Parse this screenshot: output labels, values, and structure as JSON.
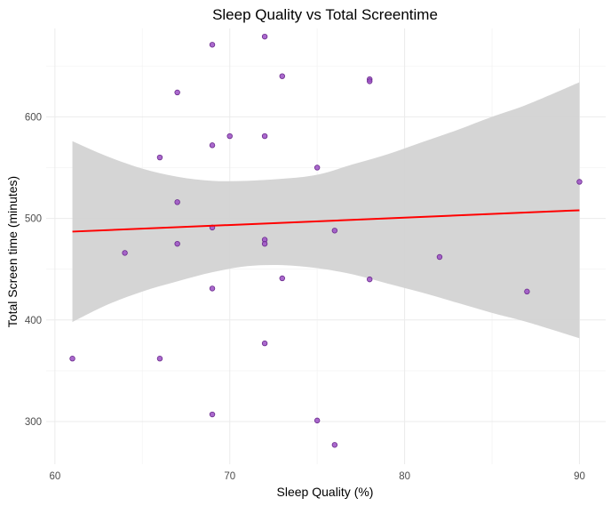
{
  "chart_data": {
    "type": "scatter",
    "title": "Sleep Quality vs Total Screentime",
    "xlabel": "Sleep Quality (%)",
    "ylabel": "Total Screen time (minutes)",
    "xlim": [
      59.5,
      91.5
    ],
    "ylim": [
      258,
      687
    ],
    "x_ticks": [
      60,
      70,
      80,
      90
    ],
    "y_ticks": [
      300,
      400,
      500,
      600
    ],
    "grid": true,
    "points": [
      {
        "x": 61,
        "y": 362
      },
      {
        "x": 64,
        "y": 466
      },
      {
        "x": 66,
        "y": 560
      },
      {
        "x": 66,
        "y": 362
      },
      {
        "x": 67,
        "y": 624
      },
      {
        "x": 67,
        "y": 516
      },
      {
        "x": 67,
        "y": 475
      },
      {
        "x": 69,
        "y": 671
      },
      {
        "x": 69,
        "y": 572
      },
      {
        "x": 69,
        "y": 491
      },
      {
        "x": 69,
        "y": 431
      },
      {
        "x": 69,
        "y": 307
      },
      {
        "x": 70,
        "y": 581
      },
      {
        "x": 72,
        "y": 679
      },
      {
        "x": 72,
        "y": 581
      },
      {
        "x": 72,
        "y": 479
      },
      {
        "x": 72,
        "y": 475
      },
      {
        "x": 72,
        "y": 377
      },
      {
        "x": 73,
        "y": 640
      },
      {
        "x": 73,
        "y": 441
      },
      {
        "x": 75,
        "y": 550
      },
      {
        "x": 75,
        "y": 301
      },
      {
        "x": 76,
        "y": 488
      },
      {
        "x": 76,
        "y": 277
      },
      {
        "x": 78,
        "y": 637
      },
      {
        "x": 78,
        "y": 635
      },
      {
        "x": 78,
        "y": 440
      },
      {
        "x": 82,
        "y": 462
      },
      {
        "x": 87,
        "y": 428
      },
      {
        "x": 90,
        "y": 536
      }
    ],
    "fit_line": {
      "x": [
        61,
        90
      ],
      "y": [
        487,
        508
      ]
    },
    "confidence_band": {
      "x": [
        61,
        63,
        65,
        67,
        69,
        71,
        73,
        75,
        77,
        79,
        81,
        83,
        85,
        87,
        90
      ],
      "upper": [
        576,
        561,
        549,
        541,
        537,
        537,
        539,
        543,
        553,
        563,
        575,
        587,
        600,
        612,
        634
      ],
      "lower": [
        398,
        415,
        428,
        438,
        447,
        453,
        454,
        451,
        445,
        436,
        427,
        417,
        407,
        398,
        382
      ]
    },
    "colors": {
      "point_fill": "#9b4fc4",
      "point_stroke": "#6a2a8c",
      "line": "#ff0000",
      "band": "#d3d3d3"
    }
  }
}
